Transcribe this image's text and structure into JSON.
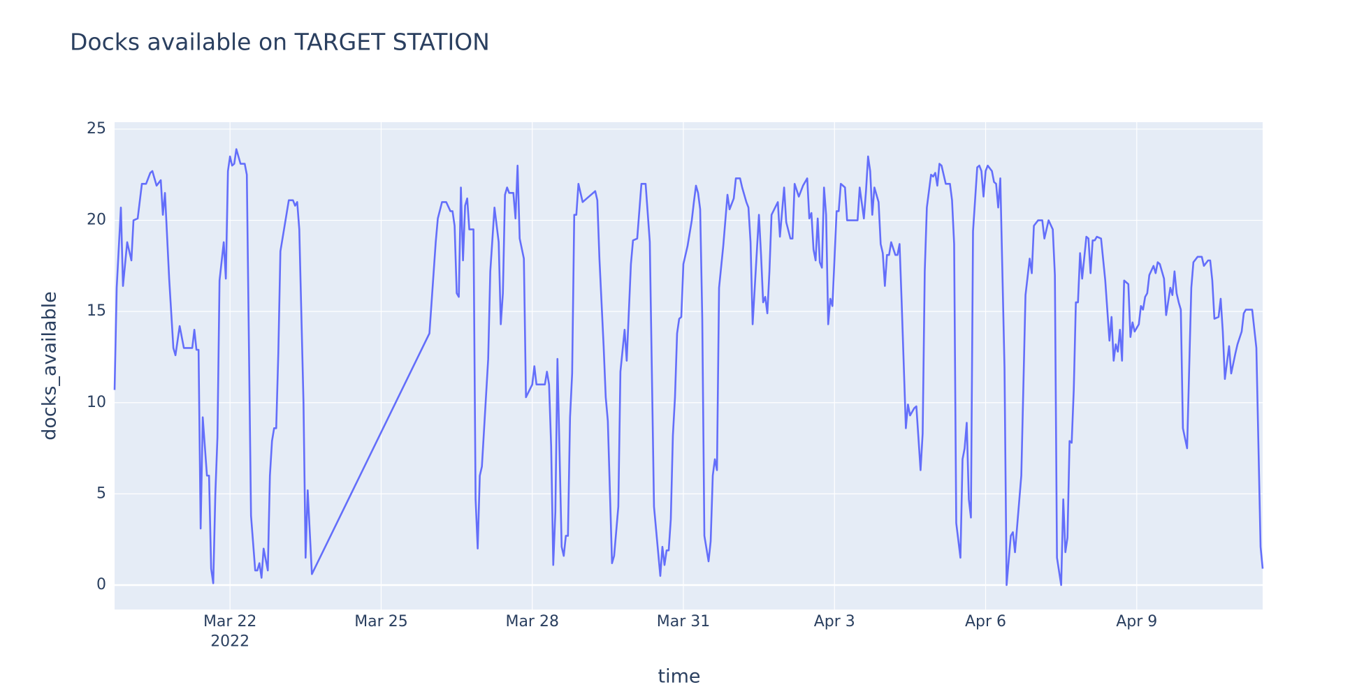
{
  "chart_data": {
    "type": "line",
    "title": "Docks available on TARGET STATION",
    "x_label": "time",
    "y_label": "docks_available",
    "color": "#636efa",
    "grid": true,
    "xlim": [
      "2022-03-19 17:00",
      "2022-04-11 12:00"
    ],
    "ylim": [
      -1.34,
      25.38
    ],
    "yticks": [
      0,
      5,
      10,
      15,
      20,
      25
    ],
    "xticks": [
      {
        "value": "2022-03-22 00:00",
        "label": "Mar 22\n2022"
      },
      {
        "value": "2022-03-25 00:00",
        "label": "Mar 25"
      },
      {
        "value": "2022-03-28 00:00",
        "label": "Mar 28"
      },
      {
        "value": "2022-03-31 00:00",
        "label": "Mar 31"
      },
      {
        "value": "2022-04-03 00:00",
        "label": "Apr 3"
      },
      {
        "value": "2022-04-06 00:00",
        "label": "Apr 6"
      },
      {
        "value": "2022-04-09 00:00",
        "label": "Apr 9"
      }
    ],
    "x": [
      "2022-03-19 17:00",
      "2022-03-19 18:00",
      "2022-03-19 20:00",
      "2022-03-19 21:00",
      "2022-03-19 23:00",
      "2022-03-20 01:00",
      "2022-03-20 02:00",
      "2022-03-20 04:00",
      "2022-03-20 06:00",
      "2022-03-20 08:00",
      "2022-03-20 10:00",
      "2022-03-20 11:00",
      "2022-03-20 13:00",
      "2022-03-20 15:00",
      "2022-03-20 16:00",
      "2022-03-20 17:00",
      "2022-03-20 19:00",
      "2022-03-20 21:00",
      "2022-03-20 22:00",
      "2022-03-21 00:00",
      "2022-03-21 02:00",
      "2022-03-21 06:00",
      "2022-03-21 07:00",
      "2022-03-21 08:00",
      "2022-03-21 09:00",
      "2022-03-21 10:00",
      "2022-03-21 11:00",
      "2022-03-21 13:00",
      "2022-03-21 14:00",
      "2022-03-21 15:00",
      "2022-03-21 16:00",
      "2022-03-21 17:00",
      "2022-03-21 18:00",
      "2022-03-21 19:00",
      "2022-03-21 21:00",
      "2022-03-21 22:00",
      "2022-03-21 23:00",
      "2022-03-22 00:00",
      "2022-03-22 01:00",
      "2022-03-22 02:00",
      "2022-03-22 03:00",
      "2022-03-22 05:00",
      "2022-03-22 07:00",
      "2022-03-22 08:00",
      "2022-03-22 10:00",
      "2022-03-22 12:00",
      "2022-03-22 13:00",
      "2022-03-22 14:00",
      "2022-03-22 15:00",
      "2022-03-22 16:00",
      "2022-03-22 18:00",
      "2022-03-22 19:00",
      "2022-03-22 20:00",
      "2022-03-22 21:00",
      "2022-03-22 22:00",
      "2022-03-22 23:00",
      "2022-03-23 00:00",
      "2022-03-23 04:00",
      "2022-03-23 06:00",
      "2022-03-23 07:00",
      "2022-03-23 08:00",
      "2022-03-23 09:00",
      "2022-03-23 11:00",
      "2022-03-23 12:00",
      "2022-03-23 13:00",
      "2022-03-23 15:00",
      "2022-03-25 23:00",
      "2022-03-26 02:00",
      "2022-03-26 03:00",
      "2022-03-26 05:00",
      "2022-03-26 07:00",
      "2022-03-26 09:00",
      "2022-03-26 10:00",
      "2022-03-26 11:00",
      "2022-03-26 12:00",
      "2022-03-26 13:00",
      "2022-03-26 14:00",
      "2022-03-26 15:00",
      "2022-03-26 16:00",
      "2022-03-26 17:00",
      "2022-03-26 18:00",
      "2022-03-26 20:00",
      "2022-03-26 21:00",
      "2022-03-26 22:00",
      "2022-03-26 23:00",
      "2022-03-27 00:00",
      "2022-03-27 03:00",
      "2022-03-27 04:00",
      "2022-03-27 06:00",
      "2022-03-27 08:00",
      "2022-03-27 09:00",
      "2022-03-27 10:00",
      "2022-03-27 11:00",
      "2022-03-27 12:00",
      "2022-03-27 13:00",
      "2022-03-27 15:00",
      "2022-03-27 16:00",
      "2022-03-27 17:00",
      "2022-03-27 18:00",
      "2022-03-27 20:00",
      "2022-03-27 21:00",
      "2022-03-28 00:00",
      "2022-03-28 01:00",
      "2022-03-28 02:00",
      "2022-03-28 06:00",
      "2022-03-28 07:00",
      "2022-03-28 08:00",
      "2022-03-28 09:00",
      "2022-03-28 10:00",
      "2022-03-28 11:00",
      "2022-03-28 12:00",
      "2022-03-28 14:00",
      "2022-03-28 15:00",
      "2022-03-28 16:00",
      "2022-03-28 17:00",
      "2022-03-28 18:00",
      "2022-03-28 19:00",
      "2022-03-28 20:00",
      "2022-03-28 21:00",
      "2022-03-28 22:00",
      "2022-03-29 00:00",
      "2022-03-29 02:00",
      "2022-03-29 06:00",
      "2022-03-29 07:00",
      "2022-03-29 08:00",
      "2022-03-29 10:00",
      "2022-03-29 11:00",
      "2022-03-29 12:00",
      "2022-03-29 14:00",
      "2022-03-29 15:00",
      "2022-03-29 17:00",
      "2022-03-29 18:00",
      "2022-03-29 20:00",
      "2022-03-29 21:00",
      "2022-03-29 23:00",
      "2022-03-30 00:00",
      "2022-03-30 02:00",
      "2022-03-30 04:00",
      "2022-03-30 06:00",
      "2022-03-30 08:00",
      "2022-03-30 10:00",
      "2022-03-30 13:00",
      "2022-03-30 14:00",
      "2022-03-30 15:00",
      "2022-03-30 16:00",
      "2022-03-30 17:00",
      "2022-03-30 18:00",
      "2022-03-30 19:00",
      "2022-03-30 20:00",
      "2022-03-30 21:00",
      "2022-03-30 22:00",
      "2022-03-30 23:00",
      "2022-03-31 00:00",
      "2022-03-31 02:00",
      "2022-03-31 04:00",
      "2022-03-31 05:00",
      "2022-03-31 06:00",
      "2022-03-31 07:00",
      "2022-03-31 08:00",
      "2022-03-31 09:00",
      "2022-03-31 10:00",
      "2022-03-31 12:00",
      "2022-03-31 13:00",
      "2022-03-31 14:00",
      "2022-03-31 15:00",
      "2022-03-31 16:00",
      "2022-03-31 17:00",
      "2022-03-31 19:00",
      "2022-03-31 21:00",
      "2022-03-31 22:00",
      "2022-04-01 00:00",
      "2022-04-01 01:00",
      "2022-04-01 03:00",
      "2022-04-01 04:00",
      "2022-04-01 06:00",
      "2022-04-01 07:00",
      "2022-04-01 08:00",
      "2022-04-01 09:00",
      "2022-04-01 12:00",
      "2022-04-01 13:00",
      "2022-04-01 14:00",
      "2022-04-01 15:00",
      "2022-04-01 16:00",
      "2022-04-01 17:00",
      "2022-04-01 18:00",
      "2022-04-01 21:00",
      "2022-04-01 22:00",
      "2022-04-02 00:00",
      "2022-04-02 01:00",
      "2022-04-02 03:00",
      "2022-04-02 04:00",
      "2022-04-02 05:00",
      "2022-04-02 07:00",
      "2022-04-02 09:00",
      "2022-04-02 11:00",
      "2022-04-02 12:00",
      "2022-04-02 13:00",
      "2022-04-02 14:00",
      "2022-04-02 15:00",
      "2022-04-02 16:00",
      "2022-04-02 17:00",
      "2022-04-02 18:00",
      "2022-04-02 19:00",
      "2022-04-02 20:00",
      "2022-04-02 21:00",
      "2022-04-02 22:00",
      "2022-04-02 23:00",
      "2022-04-03 01:00",
      "2022-04-03 02:00",
      "2022-04-03 03:00",
      "2022-04-03 04:00",
      "2022-04-03 05:00",
      "2022-04-03 06:00",
      "2022-04-03 09:00",
      "2022-04-03 11:00",
      "2022-04-03 12:00",
      "2022-04-03 14:00",
      "2022-04-03 15:00",
      "2022-04-03 16:00",
      "2022-04-03 17:00",
      "2022-04-03 18:00",
      "2022-04-03 19:00",
      "2022-04-03 21:00",
      "2022-04-03 22:00",
      "2022-04-03 23:00",
      "2022-04-04 00:00",
      "2022-04-04 01:00",
      "2022-04-04 02:00",
      "2022-04-04 03:00",
      "2022-04-04 05:00",
      "2022-04-04 06:00",
      "2022-04-04 07:00",
      "2022-04-04 08:00",
      "2022-04-04 10:00",
      "2022-04-04 11:00",
      "2022-04-04 12:00",
      "2022-04-04 14:00",
      "2022-04-04 15:00",
      "2022-04-04 17:00",
      "2022-04-04 18:00",
      "2022-04-04 19:00",
      "2022-04-04 20:00",
      "2022-04-04 22:00",
      "2022-04-04 23:00",
      "2022-04-05 00:00",
      "2022-04-05 01:00",
      "2022-04-05 02:00",
      "2022-04-05 03:00",
      "2022-04-05 05:00",
      "2022-04-05 07:00",
      "2022-04-05 08:00",
      "2022-04-05 09:00",
      "2022-04-05 10:00",
      "2022-04-05 12:00",
      "2022-04-05 13:00",
      "2022-04-05 14:00",
      "2022-04-05 15:00",
      "2022-04-05 16:00",
      "2022-04-05 17:00",
      "2022-04-05 18:00",
      "2022-04-05 20:00",
      "2022-04-05 21:00",
      "2022-04-05 22:00",
      "2022-04-05 23:00",
      "2022-04-06 00:00",
      "2022-04-06 01:00",
      "2022-04-06 03:00",
      "2022-04-06 04:00",
      "2022-04-06 05:00",
      "2022-04-06 06:00",
      "2022-04-06 07:00",
      "2022-04-06 09:00",
      "2022-04-06 10:00",
      "2022-04-06 12:00",
      "2022-04-06 13:00",
      "2022-04-06 14:00",
      "2022-04-06 17:00",
      "2022-04-06 19:00",
      "2022-04-06 21:00",
      "2022-04-06 22:00",
      "2022-04-06 23:00",
      "2022-04-07 01:00",
      "2022-04-07 03:00",
      "2022-04-07 04:00",
      "2022-04-07 06:00",
      "2022-04-07 08:00",
      "2022-04-07 09:00",
      "2022-04-07 10:00",
      "2022-04-07 12:00",
      "2022-04-07 13:00",
      "2022-04-07 14:00",
      "2022-04-07 15:00",
      "2022-04-07 16:00",
      "2022-04-07 17:00",
      "2022-04-07 18:00",
      "2022-04-07 19:00",
      "2022-04-07 20:00",
      "2022-04-07 21:00",
      "2022-04-07 22:00",
      "2022-04-08 00:00",
      "2022-04-08 01:00",
      "2022-04-08 02:00",
      "2022-04-08 03:00",
      "2022-04-08 04:00",
      "2022-04-08 05:00",
      "2022-04-08 07:00",
      "2022-04-08 09:00",
      "2022-04-08 11:00",
      "2022-04-08 12:00",
      "2022-04-08 13:00",
      "2022-04-08 14:00",
      "2022-04-08 15:00",
      "2022-04-08 16:00",
      "2022-04-08 17:00",
      "2022-04-08 18:00",
      "2022-04-08 20:00",
      "2022-04-08 21:00",
      "2022-04-08 22:00",
      "2022-04-08 23:00",
      "2022-04-09 01:00",
      "2022-04-09 02:00",
      "2022-04-09 03:00",
      "2022-04-09 04:00",
      "2022-04-09 05:00",
      "2022-04-09 06:00",
      "2022-04-09 08:00",
      "2022-04-09 09:00",
      "2022-04-09 10:00",
      "2022-04-09 11:00",
      "2022-04-09 13:00",
      "2022-04-09 14:00",
      "2022-04-09 16:00",
      "2022-04-09 17:00",
      "2022-04-09 18:00",
      "2022-04-09 19:00",
      "2022-04-09 20:00",
      "2022-04-09 21:00",
      "2022-04-09 22:00",
      "2022-04-10 00:00",
      "2022-04-10 01:00",
      "2022-04-10 02:00",
      "2022-04-10 03:00",
      "2022-04-10 05:00",
      "2022-04-10 07:00",
      "2022-04-10 08:00",
      "2022-04-10 10:00",
      "2022-04-10 11:00",
      "2022-04-10 12:00",
      "2022-04-10 13:00",
      "2022-04-10 15:00",
      "2022-04-10 16:00",
      "2022-04-10 17:00",
      "2022-04-10 18:00",
      "2022-04-10 20:00",
      "2022-04-10 21:00",
      "2022-04-10 23:00",
      "2022-04-11 00:00",
      "2022-04-11 02:00",
      "2022-04-11 03:00",
      "2022-04-11 04:00",
      "2022-04-11 07:00",
      "2022-04-11 09:00",
      "2022-04-11 11:00",
      "2022-04-11 12:00"
    ],
    "values": [
      10.7,
      16.3,
      20.7,
      16.4,
      18.8,
      17.8,
      20.0,
      20.1,
      22.0,
      22.0,
      22.6,
      22.7,
      21.9,
      22.2,
      20.3,
      21.5,
      16.8,
      13.0,
      12.6,
      14.2,
      13.0,
      13.0,
      14.0,
      12.9,
      12.9,
      3.1,
      9.2,
      6.0,
      6.0,
      0.9,
      0.1,
      5.0,
      8.1,
      16.7,
      18.8,
      16.8,
      22.7,
      23.5,
      23.0,
      23.1,
      23.9,
      23.1,
      23.1,
      22.5,
      3.8,
      0.8,
      0.8,
      1.2,
      0.4,
      2.0,
      0.8,
      6.0,
      7.9,
      8.6,
      8.6,
      12.7,
      18.3,
      21.1,
      21.1,
      20.8,
      21.0,
      19.5,
      10.0,
      1.5,
      5.2,
      0.6,
      13.8,
      18.8,
      20.1,
      21.0,
      21.0,
      20.5,
      20.5,
      19.7,
      16.0,
      15.8,
      21.8,
      17.8,
      20.8,
      21.2,
      19.5,
      19.5,
      4.7,
      2.0,
      6.0,
      6.5,
      12.4,
      17.2,
      20.7,
      18.8,
      14.3,
      16.0,
      21.4,
      21.8,
      21.5,
      21.5,
      20.1,
      23.0,
      19.0,
      17.9,
      10.3,
      11.0,
      12.0,
      11.0,
      11.0,
      11.7,
      11.0,
      7.6,
      1.1,
      4.0,
      12.4,
      2.1,
      1.6,
      2.7,
      2.7,
      9.2,
      11.6,
      20.3,
      20.3,
      22.0,
      21.0,
      21.2,
      21.6,
      21.1,
      17.9,
      13.1,
      10.3,
      9.0,
      1.2,
      1.6,
      4.3,
      11.7,
      14.0,
      12.3,
      17.6,
      18.9,
      19.0,
      22.0,
      22.0,
      18.8,
      4.3,
      0.5,
      2.1,
      1.1,
      1.9,
      1.9,
      3.6,
      8.2,
      10.3,
      13.8,
      14.6,
      14.7,
      17.6,
      18.6,
      20.0,
      21.0,
      21.9,
      21.5,
      20.6,
      14.6,
      2.7,
      1.3,
      2.4,
      6.0,
      6.9,
      6.3,
      16.3,
      18.6,
      21.4,
      20.6,
      21.2,
      22.3,
      22.3,
      21.8,
      21.0,
      20.7,
      18.8,
      14.3,
      20.3,
      18.1,
      15.5,
      15.8,
      14.9,
      17.2,
      20.3,
      21.0,
      19.1,
      21.8,
      19.9,
      19.0,
      19.0,
      22.0,
      21.3,
      21.9,
      22.3,
      20.1,
      20.4,
      18.4,
      17.8,
      20.1,
      17.7,
      17.4,
      21.8,
      20.3,
      14.3,
      15.7,
      15.3,
      20.5,
      20.5,
      22.0,
      21.9,
      21.8,
      20.0,
      20.0,
      20.0,
      21.8,
      20.1,
      21.6,
      23.5,
      22.7,
      20.3,
      21.8,
      21.0,
      18.7,
      18.2,
      16.4,
      18.1,
      18.1,
      18.8,
      18.1,
      18.1,
      18.7,
      15.5,
      8.6,
      9.9,
      9.3,
      9.7,
      9.8,
      6.3,
      8.3,
      17.2,
      20.7,
      22.5,
      22.4,
      22.6,
      21.9,
      23.1,
      23.0,
      22.0,
      22.0,
      21.1,
      18.7,
      3.4,
      1.5,
      6.9,
      7.5,
      8.9,
      4.7,
      3.7,
      19.4,
      22.9,
      23.0,
      22.7,
      21.3,
      22.7,
      23.0,
      22.7,
      22.1,
      22.0,
      20.7,
      22.3,
      11.9,
      0.0,
      2.7,
      2.9,
      1.8,
      6.0,
      15.9,
      17.9,
      17.1,
      19.7,
      20.0,
      20.0,
      19.0,
      20.0,
      19.5,
      17.0,
      1.5,
      0.0,
      4.7,
      1.8,
      2.6,
      7.9,
      7.8,
      10.7,
      15.5,
      15.5,
      18.2,
      16.8,
      19.1,
      19.0,
      17.1,
      18.9,
      18.9,
      19.1,
      19.0,
      16.7,
      13.4,
      14.7,
      12.3,
      13.2,
      12.8,
      14.0,
      12.3,
      16.7,
      16.5,
      13.6,
      14.4,
      13.9,
      14.3,
      15.3,
      15.1,
      15.8,
      16.0,
      17.0,
      17.5,
      17.1,
      17.7,
      17.6,
      16.8,
      14.8,
      16.3,
      15.9,
      17.2,
      16.0,
      15.5,
      15.1,
      8.6,
      7.5,
      11.9,
      16.3,
      17.7,
      18.0,
      18.0,
      17.5,
      17.8,
      17.8,
      16.7,
      14.6,
      14.7,
      15.7,
      13.9,
      11.3,
      13.1,
      11.6,
      12.7,
      13.2,
      13.9,
      14.9,
      15.1,
      15.1,
      13.0,
      2.1,
      0.9
    ]
  }
}
